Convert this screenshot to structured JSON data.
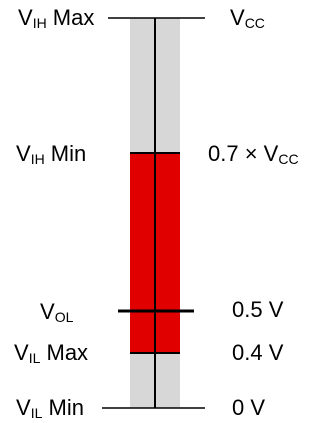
{
  "colors": {
    "scale_bar": "#d7d7d7",
    "band": "#e00000",
    "lines": "#000000"
  },
  "left_labels": {
    "vih_max": {
      "main": "V",
      "sub": "IH",
      "suffix": " Max"
    },
    "vih_min": {
      "main": "V",
      "sub": "IH",
      "suffix": " Min"
    },
    "vol": {
      "main": "V",
      "sub": "OL",
      "suffix": ""
    },
    "vil_max": {
      "main": "V",
      "sub": "IL",
      "suffix": " Max"
    },
    "vil_min": {
      "main": "V",
      "sub": "IL",
      "suffix": " Min"
    }
  },
  "right_labels": {
    "vcc": {
      "main": "V",
      "sub": "CC"
    },
    "vih_min": {
      "prefix": "0.7 × ",
      "main": "V",
      "sub": "CC"
    },
    "vol": {
      "text": "0.5 V"
    },
    "vil_max": {
      "text": "0.4 V"
    },
    "vil_min": {
      "text": "0 V"
    }
  }
}
